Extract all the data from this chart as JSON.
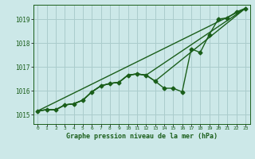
{
  "title": "Graphe pression niveau de la mer (hPa)",
  "background_color": "#cce8e8",
  "grid_color": "#aacccc",
  "line_color": "#1a5e1a",
  "xlim": [
    -0.5,
    23.5
  ],
  "ylim": [
    1014.6,
    1019.6
  ],
  "yticks": [
    1015,
    1016,
    1017,
    1018,
    1019
  ],
  "xticks": [
    0,
    1,
    2,
    3,
    4,
    5,
    6,
    7,
    8,
    9,
    10,
    11,
    12,
    13,
    14,
    15,
    16,
    17,
    18,
    19,
    20,
    21,
    22,
    23
  ],
  "xtick_labels": [
    "0",
    "1",
    "2",
    "3",
    "4",
    "5",
    "6",
    "7",
    "8",
    "9",
    "10",
    "11",
    "12",
    "13",
    "14",
    "15",
    "16",
    "17",
    "18",
    "19",
    "20",
    "21",
    "22",
    "23"
  ],
  "series_main": {
    "x": [
      0,
      1,
      2,
      3,
      4,
      5,
      6,
      7,
      8,
      9,
      10,
      11,
      12,
      13,
      14,
      15,
      16,
      17,
      18,
      19,
      20,
      21,
      22,
      23
    ],
    "y": [
      1015.15,
      1015.2,
      1015.2,
      1015.4,
      1015.45,
      1015.6,
      1015.95,
      1016.2,
      1016.3,
      1016.35,
      1016.65,
      1016.7,
      1016.65,
      1016.4,
      1016.1,
      1016.1,
      1015.95,
      1017.75,
      1017.6,
      1018.35,
      1019.0,
      1019.05,
      1019.3,
      1019.45
    ]
  },
  "series_linear": {
    "x": [
      0,
      23
    ],
    "y": [
      1015.15,
      1019.45
    ]
  },
  "series_partial": {
    "x": [
      0,
      1,
      2,
      3,
      4,
      5,
      6,
      7,
      8,
      9,
      10,
      11,
      12,
      23
    ],
    "y": [
      1015.15,
      1015.2,
      1015.2,
      1015.4,
      1015.45,
      1015.6,
      1015.95,
      1016.2,
      1016.3,
      1016.35,
      1016.65,
      1016.7,
      1016.65,
      1019.45
    ]
  },
  "series_partial2": {
    "x": [
      0,
      1,
      2,
      3,
      4,
      5,
      6,
      7,
      8,
      9,
      10,
      11,
      12,
      13,
      23
    ],
    "y": [
      1015.15,
      1015.2,
      1015.2,
      1015.4,
      1015.45,
      1015.6,
      1015.95,
      1016.2,
      1016.3,
      1016.35,
      1016.65,
      1016.7,
      1016.65,
      1016.4,
      1019.45
    ]
  }
}
